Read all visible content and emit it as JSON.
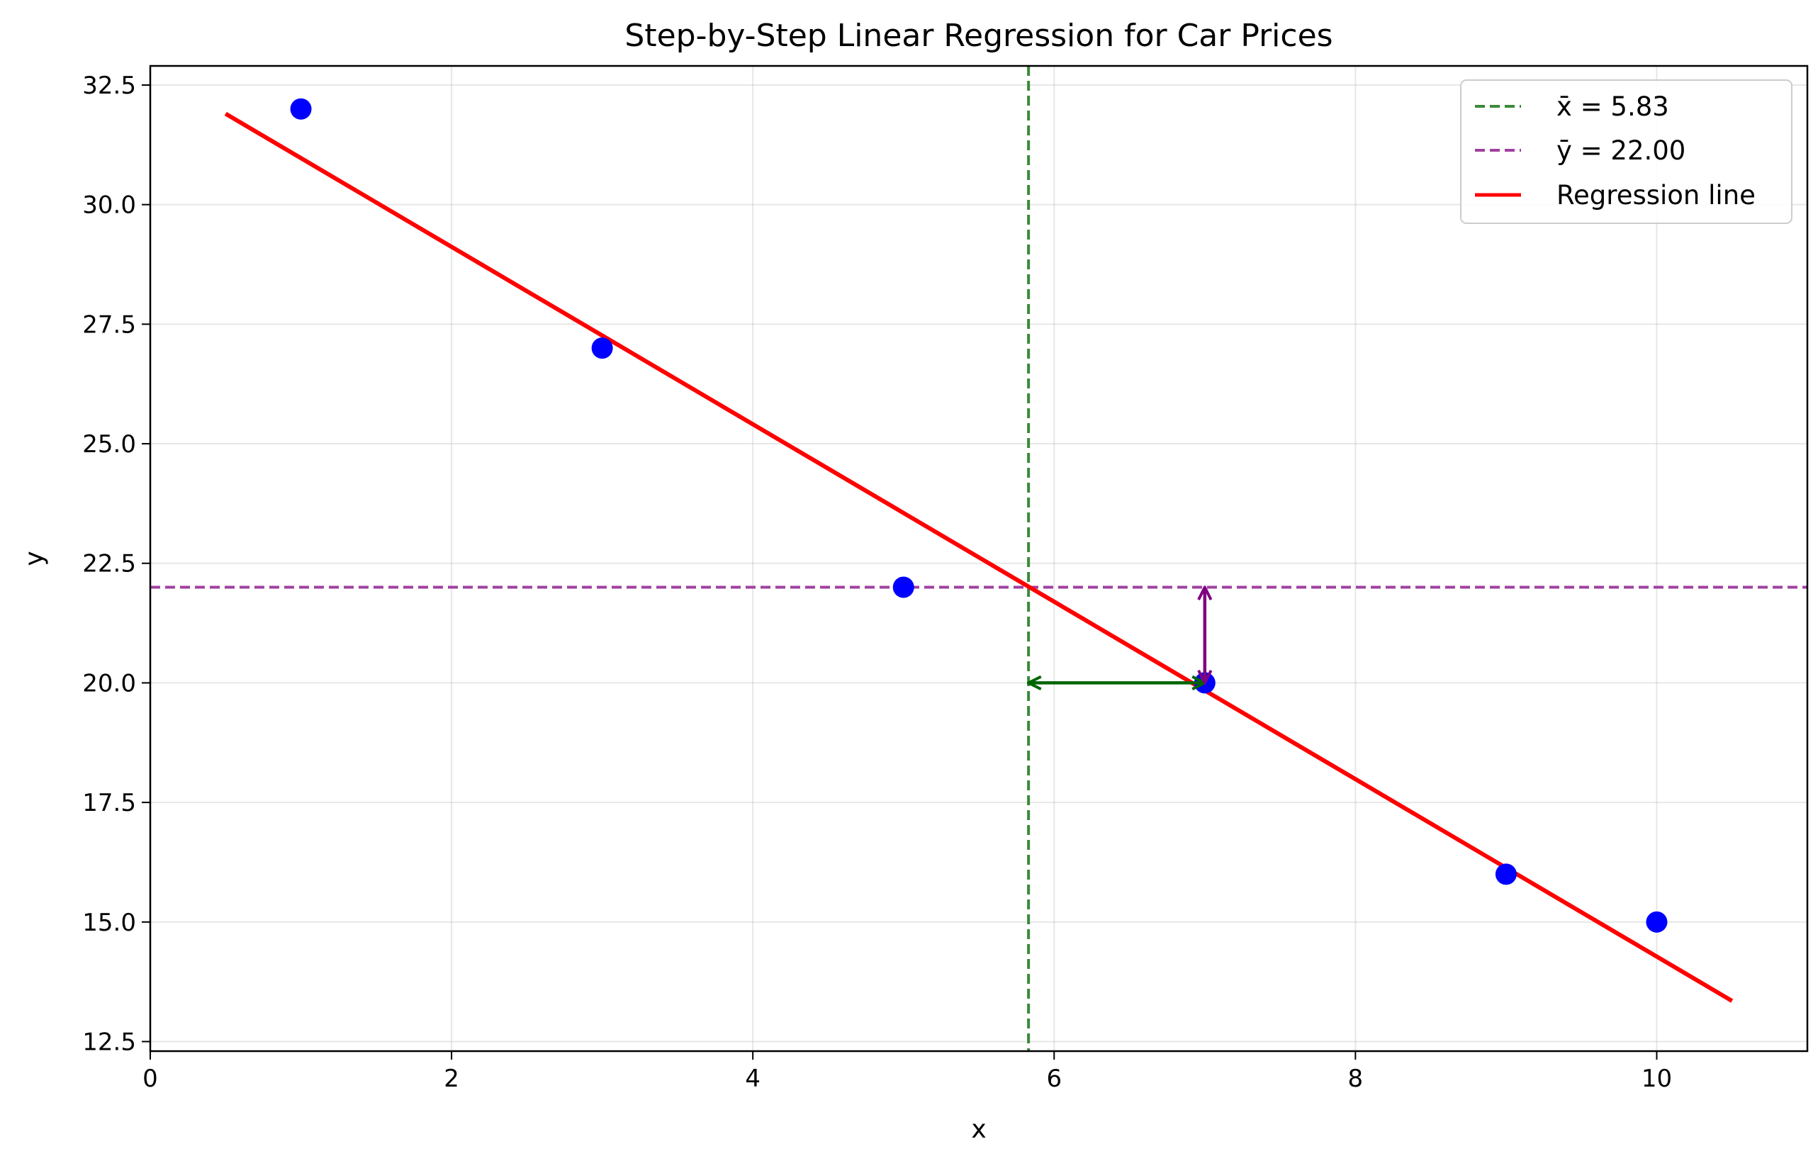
{
  "chart_data": {
    "type": "scatter",
    "title": "Step-by-Step Linear Regression for Car Prices",
    "xlabel": "x",
    "ylabel": "y",
    "xlim": [
      0,
      11
    ],
    "ylim": [
      12.3,
      32.9
    ],
    "xticks": [
      0,
      2,
      4,
      6,
      8,
      10
    ],
    "yticks": [
      12.5,
      15.0,
      17.5,
      20.0,
      22.5,
      25.0,
      27.5,
      30.0,
      32.5
    ],
    "grid": true,
    "legend_position": "top-right",
    "points": {
      "x": [
        1,
        3,
        5,
        7,
        9,
        10
      ],
      "y": [
        32,
        27,
        22,
        20,
        16,
        15
      ],
      "color": "#0000ff"
    },
    "mean_x": {
      "value": 5.83,
      "label": "x̄ = 5.83",
      "color": "#3a8a3a"
    },
    "mean_y": {
      "value": 22.0,
      "label": "ȳ = 22.00",
      "color": "#a040a0"
    },
    "regression": {
      "label": "Regression line",
      "color": "#ff0000",
      "x": [
        0.5,
        10.5
      ],
      "y": [
        31.9,
        13.35
      ]
    },
    "annotations": [
      {
        "type": "double-arrow",
        "from": [
          5.83,
          20.0
        ],
        "to": [
          7.0,
          20.0
        ],
        "color": "#006400"
      },
      {
        "type": "double-arrow",
        "from": [
          7.0,
          22.0
        ],
        "to": [
          7.0,
          20.0
        ],
        "color": "#800080"
      }
    ]
  }
}
